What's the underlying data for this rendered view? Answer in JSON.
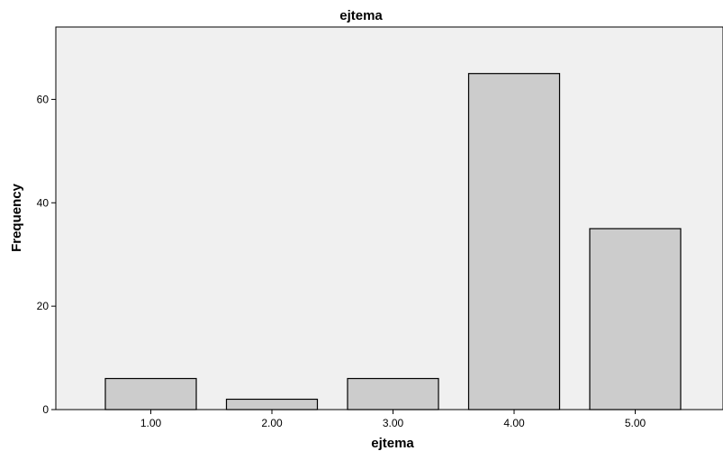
{
  "chart_data": {
    "type": "bar",
    "title": "ejtema",
    "xlabel": "ejtema",
    "ylabel": "Frequency",
    "categories": [
      "1.00",
      "2.00",
      "3.00",
      "4.00",
      "5.00"
    ],
    "values": [
      6,
      2,
      6,
      65,
      35
    ],
    "ylim": [
      0,
      74
    ],
    "yticks": [
      0,
      20,
      40,
      60
    ],
    "ytick_labels": [
      "0",
      "20",
      "40",
      "60"
    ],
    "grid": false,
    "colors": {
      "bar_fill": "#cccccc",
      "bar_stroke": "#000000",
      "plot_background": "#f0f0f0"
    }
  }
}
